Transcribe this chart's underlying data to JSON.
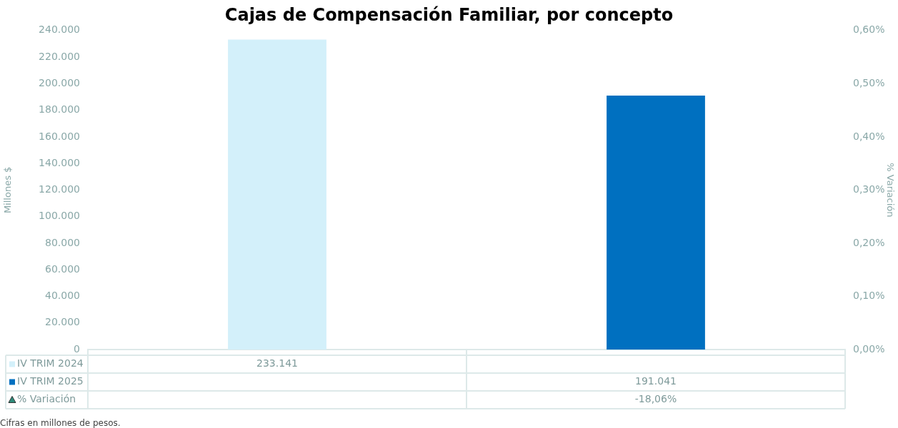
{
  "chart_data": {
    "type": "bar",
    "title": "Cajas de Compensación Familiar, por concepto",
    "ylabel": "Millones $",
    "y2label": "% Variación",
    "categories": [
      null,
      null
    ],
    "series": [
      {
        "name": "IV TRIM 2024",
        "color": "#d3f0fa",
        "values": [
          233141,
          null
        ],
        "value_labels": [
          "233.141",
          null
        ]
      },
      {
        "name": "IV TRIM 2025",
        "color": "#0070c0",
        "values": [
          null,
          191041
        ],
        "value_labels": [
          null,
          "191.041"
        ]
      },
      {
        "name": "% Variación",
        "marker": "triangle",
        "color": "#2e8b7a",
        "values": [
          null,
          null
        ],
        "value_labels": [
          null,
          "-18,06%"
        ]
      }
    ],
    "ylim": [
      0,
      240000
    ],
    "yticks": [
      {
        "value": 0,
        "label": "0"
      },
      {
        "value": 20000,
        "label": "20.000"
      },
      {
        "value": 40000,
        "label": "40.000"
      },
      {
        "value": 60000,
        "label": "60.000"
      },
      {
        "value": 80000,
        "label": "80.000"
      },
      {
        "value": 100000,
        "label": "100.000"
      },
      {
        "value": 120000,
        "label": "120.000"
      },
      {
        "value": 140000,
        "label": "140.000"
      },
      {
        "value": 160000,
        "label": "160.000"
      },
      {
        "value": 180000,
        "label": "180.000"
      },
      {
        "value": 200000,
        "label": "200.000"
      },
      {
        "value": 220000,
        "label": "220.000"
      },
      {
        "value": 240000,
        "label": "240.000"
      }
    ],
    "y2lim": [
      0,
      0.6
    ],
    "y2ticks": [
      {
        "value": 0,
        "label": "0,00%"
      },
      {
        "value": 0.1,
        "label": "0,10%"
      },
      {
        "value": 0.2,
        "label": "0,20%"
      },
      {
        "value": 0.3,
        "label": "0,30%"
      },
      {
        "value": 0.4,
        "label": "0,40%"
      },
      {
        "value": 0.5,
        "label": "0,50%"
      },
      {
        "value": 0.6,
        "label": "0,60%"
      }
    ],
    "grid": false,
    "legend": "bottom",
    "annotations": [
      "Cifras en millones de pesos."
    ]
  }
}
